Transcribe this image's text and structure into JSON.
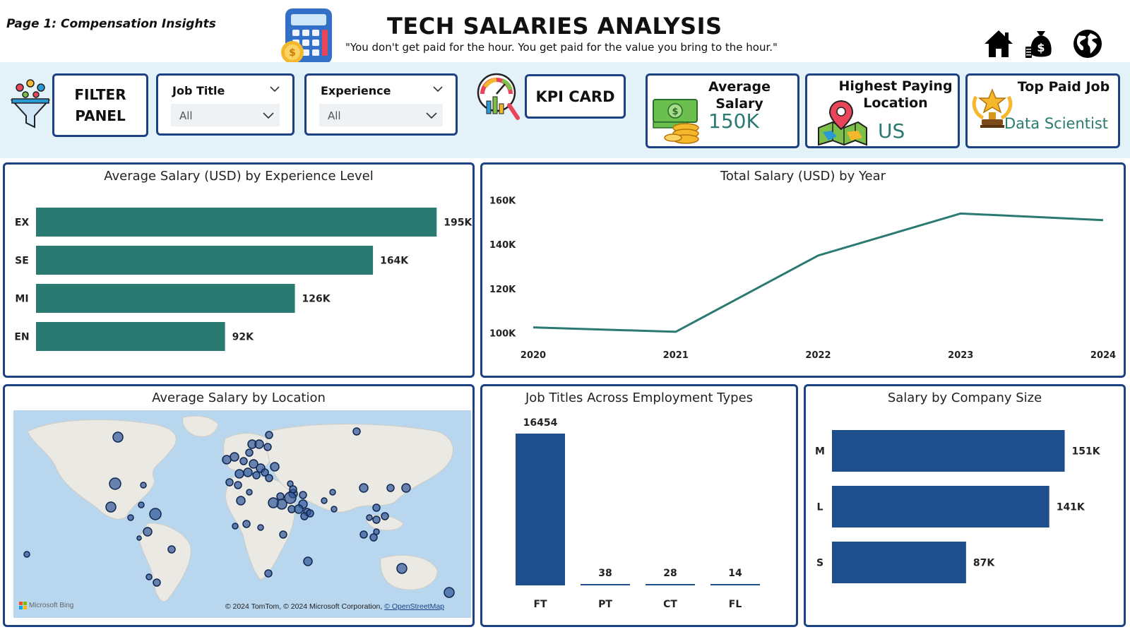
{
  "header": {
    "page_label": "Page 1: Compensation Insights",
    "title": "TECH SALARIES ANALYSIS",
    "subtitle": "\"You don't get paid for the hour. You get paid for the value you bring to the hour.\"",
    "nav_icons": [
      "home-icon",
      "money-bag-icon",
      "globe-icon"
    ]
  },
  "filters": {
    "panel_label_line1": "FILTER",
    "panel_label_line2": "PANEL",
    "job_title": {
      "label": "Job Title",
      "value": "All"
    },
    "experience": {
      "label": "Experience",
      "value": "All"
    }
  },
  "kpis": {
    "kpi_card_label": "KPI CARD",
    "avg_salary": {
      "title": "Average Salary",
      "value": "150K",
      "icon": "cash-coins-icon"
    },
    "top_location": {
      "title_line1": "Highest Paying",
      "title_line2": "Location",
      "value": "US",
      "icon": "map-pin-icon"
    },
    "top_job": {
      "title": "Top Paid Job",
      "value": "Data Scientist",
      "icon": "trophy-icon"
    }
  },
  "colors": {
    "accent_border": "#1d4283",
    "teal": "#2a7a71",
    "navy_bar": "#1f4e8c",
    "strip_bg": "#e3f1f8"
  },
  "cards": {
    "experience": {
      "title": "Average Salary (USD) by Experience Level"
    },
    "year": {
      "title": "Total Salary (USD) by Year"
    },
    "location": {
      "title": "Average Salary by Location",
      "attribution_prefix": "© 2024 TomTom, © 2024 Microsoft Corporation, ",
      "attribution_link": "© OpenStreetMap",
      "logo": "Microsoft Bing"
    },
    "employment": {
      "title": "Job Titles Across Employment Types"
    },
    "company": {
      "title": "Salary by Company Size"
    }
  },
  "chart_data": [
    {
      "type": "bar",
      "orientation": "horizontal",
      "title": "Average Salary (USD) by Experience Level",
      "categories": [
        "EX",
        "SE",
        "MI",
        "EN"
      ],
      "values": [
        195000,
        164000,
        126000,
        92000
      ],
      "labels": [
        "195K",
        "164K",
        "126K",
        "92K"
      ],
      "color": "#2a7a71",
      "xlim": [
        0,
        220000
      ]
    },
    {
      "type": "line",
      "title": "Total Salary (USD) by Year",
      "x": [
        "2020",
        "2021",
        "2022",
        "2023",
        "2024"
      ],
      "values": [
        102500,
        100500,
        135000,
        154000,
        151000
      ],
      "yticks": [
        "100K",
        "120K",
        "140K",
        "160K"
      ],
      "ytick_values": [
        100000,
        120000,
        140000,
        160000
      ],
      "ylim": [
        96000,
        164000
      ],
      "color": "#2a7a71"
    },
    {
      "type": "bar",
      "orientation": "vertical",
      "title": "Job Titles Across Employment Types",
      "categories": [
        "FT",
        "PT",
        "CT",
        "FL"
      ],
      "values": [
        16454,
        38,
        28,
        14
      ],
      "labels": [
        "16454",
        "38",
        "28",
        "14"
      ],
      "color": "#1f4e8c"
    },
    {
      "type": "bar",
      "orientation": "horizontal",
      "title": "Salary by Company Size",
      "categories": [
        "M",
        "L",
        "S"
      ],
      "values": [
        151000,
        141000,
        87000
      ],
      "labels": [
        "151K",
        "141K",
        "87K"
      ],
      "color": "#1f4e8c",
      "xlim": [
        0,
        170000
      ]
    }
  ]
}
